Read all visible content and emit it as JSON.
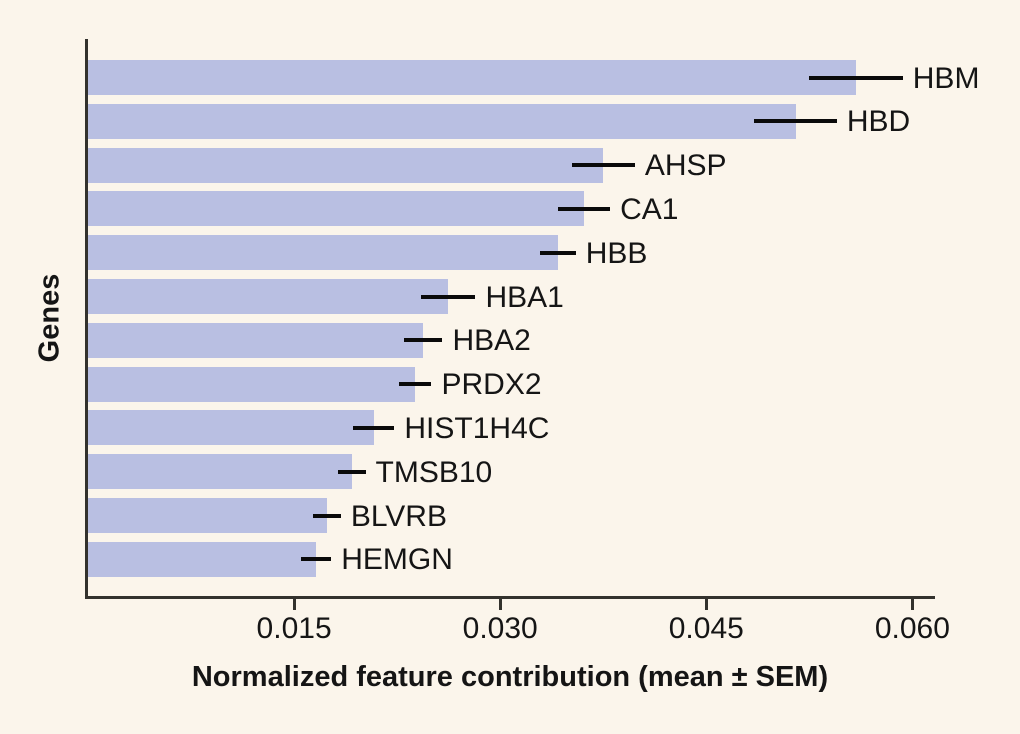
{
  "colors": {
    "background": "#FBF5EB",
    "bar": "#B9BFE2",
    "ink": "#151515",
    "spine": "#33322D",
    "error_bar": "#0A0A0A"
  },
  "chart_data": {
    "type": "bar",
    "orientation": "horizontal",
    "title": "",
    "xlabel": "Normalized feature contribution (mean ± SEM)",
    "ylabel": "Genes",
    "grid": false,
    "legend": false,
    "xlim": [
      0,
      0.0615
    ],
    "xticks": [
      0.015,
      0.03,
      0.045,
      0.06
    ],
    "xtick_labels": [
      "0.015",
      "0.030",
      "0.045",
      "0.060"
    ],
    "categories": [
      "HBM",
      "HBD",
      "AHSP",
      "CA1",
      "HBB",
      "HBA1",
      "HBA2",
      "PRDX2",
      "HIST1H4C",
      "TMSB10",
      "BLVRB",
      "HEMGN"
    ],
    "values": [
      0.0559,
      0.0515,
      0.0375,
      0.0361,
      0.0342,
      0.0262,
      0.0244,
      0.0238,
      0.0208,
      0.0192,
      0.0174,
      0.0166
    ],
    "sems": [
      0.0034,
      0.003,
      0.0023,
      0.0019,
      0.0013,
      0.002,
      0.0014,
      0.0012,
      0.0015,
      0.001,
      0.001,
      0.0011
    ],
    "error_bar_style": "horizontal line, no caps, centered on bar end"
  }
}
